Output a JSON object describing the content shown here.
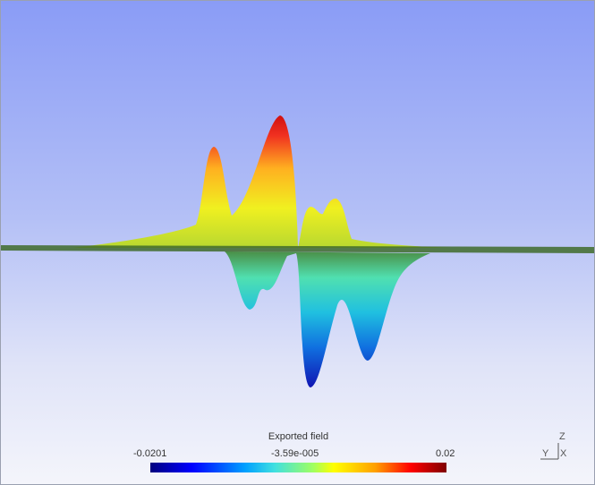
{
  "legend": {
    "title": "Exported field",
    "min_label": "-0.0201",
    "mid_label": "-3.59e-005",
    "max_label": "0.02",
    "colormap": [
      "#00007f",
      "#0000ff",
      "#00a0ff",
      "#40e0e0",
      "#a0ff60",
      "#ffff00",
      "#ffa000",
      "#ff0000",
      "#7f0000"
    ]
  },
  "axes_triad": {
    "z": "Z",
    "y": "Y",
    "x": "X"
  },
  "colors": {
    "background_top": "#8a9cf6",
    "background_bottom": "#f4f5fb",
    "base_plane": "#3f6b2a"
  }
}
